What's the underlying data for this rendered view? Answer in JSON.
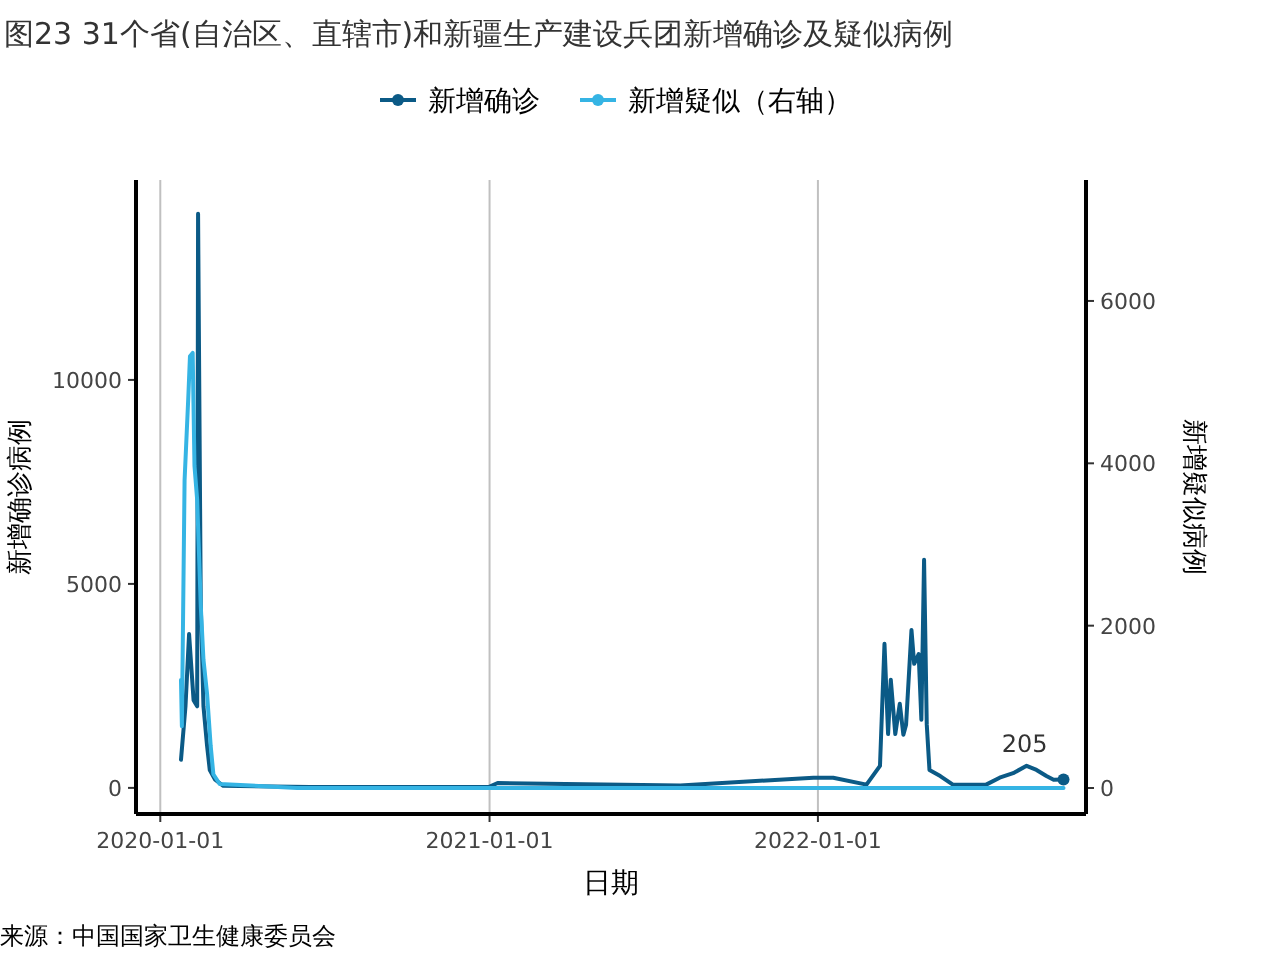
{
  "chart_data": {
    "type": "line",
    "title": "图23 31个省(自治区、直辖市)和新疆生产建设兵团新增确诊及疑似病例",
    "xlabel": "日期",
    "ylabel": "新增确诊病例",
    "y2label": "新增疑似病例",
    "legend": "top",
    "grid": "x",
    "xlim": [
      "2019-12-05",
      "2022-10-26"
    ],
    "xticks": [
      {
        "value": "2020-01-01",
        "label": "2020-01-01"
      },
      {
        "value": "2021-01-01",
        "label": "2021-01-01"
      },
      {
        "value": "2022-01-01",
        "label": "2022-01-01"
      }
    ],
    "ylim": [
      -640,
      14900
    ],
    "yticks": [
      0,
      5000,
      10000
    ],
    "y2lim": [
      -320,
      7490
    ],
    "y2ticks": [
      0,
      2000,
      4000,
      6000
    ],
    "series": [
      {
        "name": "新增确诊",
        "color": "#0b5a86",
        "x": [
          "2020-01-24",
          "2020-01-29",
          "2020-02-02",
          "2020-02-07",
          "2020-02-11",
          "2020-02-12",
          "2020-02-15",
          "2020-02-18",
          "2020-02-22",
          "2020-02-25",
          "2020-03-02",
          "2020-03-11",
          "2020-06-15",
          "2020-12-31",
          "2021-01-10",
          "2021-08-01",
          "2021-12-27",
          "2022-01-18",
          "2022-02-24",
          "2022-03-11",
          "2022-03-16",
          "2022-03-20",
          "2022-03-23",
          "2022-03-28",
          "2022-04-02",
          "2022-04-06",
          "2022-04-09",
          "2022-04-15",
          "2022-04-18",
          "2022-04-23",
          "2022-04-26",
          "2022-04-29",
          "2022-05-02",
          "2022-05-05",
          "2022-05-17",
          "2022-05-31",
          "2022-07-07",
          "2022-07-22",
          "2022-08-06",
          "2022-08-21",
          "2022-09-01",
          "2022-09-12",
          "2022-09-20",
          "2022-10-01"
        ],
        "values": [
          690,
          2000,
          3770,
          2150,
          2000,
          14070,
          4460,
          2000,
          1030,
          440,
          200,
          50,
          20,
          20,
          120,
          60,
          250,
          250,
          80,
          540,
          3530,
          1320,
          2650,
          1320,
          2060,
          1300,
          1550,
          3870,
          3040,
          3280,
          1670,
          5590,
          1550,
          440,
          290,
          80,
          80,
          250,
          360,
          540,
          440,
          290,
          200,
          205
        ]
      },
      {
        "name": "新增疑似（右轴）",
        "color": "#35b4e4",
        "axis": "y2",
        "x": [
          "2020-01-24",
          "2020-01-25",
          "2020-01-28",
          "2020-02-01",
          "2020-02-03",
          "2020-02-06",
          "2020-02-08",
          "2020-02-11",
          "2020-02-15",
          "2020-02-18",
          "2020-02-22",
          "2020-02-26",
          "2020-02-29",
          "2020-03-07",
          "2020-06-01",
          "2021-06-01",
          "2022-10-01"
        ],
        "values": [
          1330,
          760,
          3790,
          4780,
          5320,
          5360,
          3970,
          3550,
          2240,
          1580,
          1160,
          520,
          170,
          50,
          0,
          0,
          0
        ]
      }
    ],
    "annotations": [
      {
        "text": "205",
        "x": "2022-10-01",
        "y": 205
      },
      "来源：中国国家卫生健康委员会"
    ]
  }
}
